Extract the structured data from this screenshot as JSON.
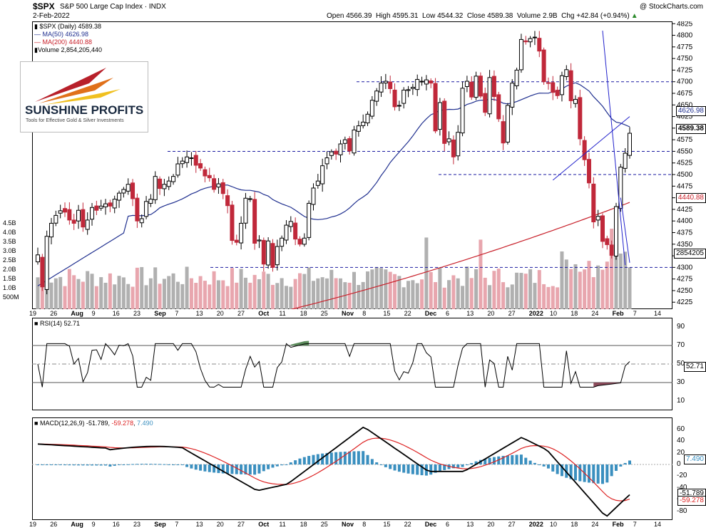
{
  "header": {
    "symbol": "$SPX",
    "name": "S&P 500 Large Cap Index",
    "exchange": "INDX",
    "date": "2-Feb-2022",
    "watermark": "@ StockCharts.com",
    "ohlc": "Open 4566.39  High 4595.31  Low 4544.32  Close 4589.38  Volume 2.9B  Chg +42.84 (+0.94%)",
    "ohlc_arrow": "▲"
  },
  "legend": {
    "price": "$SPX (Daily) 4589.38",
    "ma50": "MA(50) 4626.98",
    "ma200": "MA(200) 4440.88",
    "volume": "Volume 2,854,205,440"
  },
  "logo": {
    "name": "SUNSHINE PROFITS",
    "tagline": "Tools for Effective Gold & Silver Investments"
  },
  "colors": {
    "up": "#000000",
    "down": "#c0283a",
    "ma50": "#1f2f8f",
    "ma200": "#c8202a",
    "vol_up": "#b0b0b0",
    "vol_down": "#e8a6ae",
    "rsi_line": "#000000",
    "macd_line": "#000000",
    "signal_line": "#dd2222",
    "hist": "#3a8fbf",
    "trend": "#2222cc",
    "level": "#1a1aa0"
  },
  "price_panel": {
    "tags": {
      "ma50": "4626.98",
      "close": "4589.38",
      "ma200": "4440.88",
      "volume": "2854205"
    },
    "y_ticks": [
      4825,
      4800,
      4775,
      4750,
      4725,
      4700,
      4675,
      4650,
      4625,
      4600,
      4575,
      4550,
      4525,
      4500,
      4475,
      4450,
      4425,
      4400,
      4375,
      4350,
      4325,
      4300,
      4275,
      4250,
      4225
    ],
    "vol_ticks": [
      "4.5B",
      "4.0B",
      "3.5B",
      "3.0B",
      "2.5B",
      "2.0B",
      "1.5B",
      "1.0B",
      "500M"
    ]
  },
  "x_axis": [
    "19",
    "26",
    "Aug",
    "9",
    "16",
    "23",
    "Sep",
    "7",
    "13",
    "20",
    "27",
    "Oct",
    "11",
    "18",
    "25",
    "Nov",
    "8",
    "15",
    "22",
    "Dec",
    "6",
    "13",
    "20",
    "27",
    "2022",
    "10",
    "18",
    "24",
    "Feb",
    "7",
    "14"
  ],
  "rsi": {
    "label": "RSI(14) 52.71",
    "ticks": [
      90,
      70,
      50,
      30,
      10
    ],
    "tag": "52.71"
  },
  "macd": {
    "label_name": "MACD(12,26,9)",
    "label_macd": "-51.789",
    "label_signal": "-59.278",
    "label_hist": "7.490",
    "ticks": [
      60,
      40,
      20,
      0,
      -20,
      -40,
      -60,
      -80
    ],
    "tag_hist": "7.490",
    "tag_macd": "-51.789",
    "tag_signal": "-59.278"
  },
  "chart_data": {
    "type": "candlestick",
    "title": "$SPX S&P 500 Large Cap Index INDX",
    "x_start": "2021-07-19",
    "x_end": "2022-02-02",
    "close_series": [
      4327,
      4258,
      4367,
      4395,
      4412,
      4422,
      4419,
      4402,
      4395,
      4423,
      4387,
      4402,
      4429,
      4423,
      4432,
      4437,
      4432,
      4447,
      4460,
      4468,
      4479,
      4448,
      4400,
      4405,
      4442,
      4447,
      4496,
      4470,
      4479,
      4486,
      4496,
      4523,
      4529,
      4538,
      4536,
      4520,
      4514,
      4497,
      4493,
      4468,
      4480,
      4459,
      4433,
      4358,
      4354,
      4395,
      4449,
      4448,
      4352,
      4359,
      4307,
      4357,
      4300,
      4345,
      4363,
      4391,
      4399,
      4361,
      4350,
      4363,
      4438,
      4471,
      4486,
      4519,
      4536,
      4549,
      4544,
      4566,
      4575,
      4551,
      4596,
      4605,
      4613,
      4630,
      4660,
      4680,
      4697,
      4701,
      4685,
      4646,
      4649,
      4682,
      4683,
      4688,
      4705,
      4701,
      4704,
      4697,
      4594,
      4655,
      4567,
      4577,
      4538,
      4591,
      4686,
      4701,
      4667,
      4712,
      4669,
      4634,
      4709,
      4668,
      4620,
      4568,
      4649,
      4697,
      4725,
      4791,
      4786,
      4793,
      4796,
      4766,
      4700,
      4697,
      4677,
      4670,
      4713,
      4726,
      4659,
      4662,
      4577,
      4532,
      4482,
      4398,
      4410,
      4356,
      4349,
      4326,
      4431,
      4516,
      4546,
      4589
    ],
    "levels": [
      4700,
      4550,
      4500,
      4300
    ],
    "ma50_end": 4626.98,
    "ma200_end": 4440.88,
    "volume_end": 2854205440,
    "ylim": [
      4210,
      4830
    ],
    "rsi_last": 52.71,
    "rsi_levels": [
      70,
      30
    ],
    "macd_last": -51.789,
    "signal_last": -59.278,
    "hist_last": 7.49
  }
}
